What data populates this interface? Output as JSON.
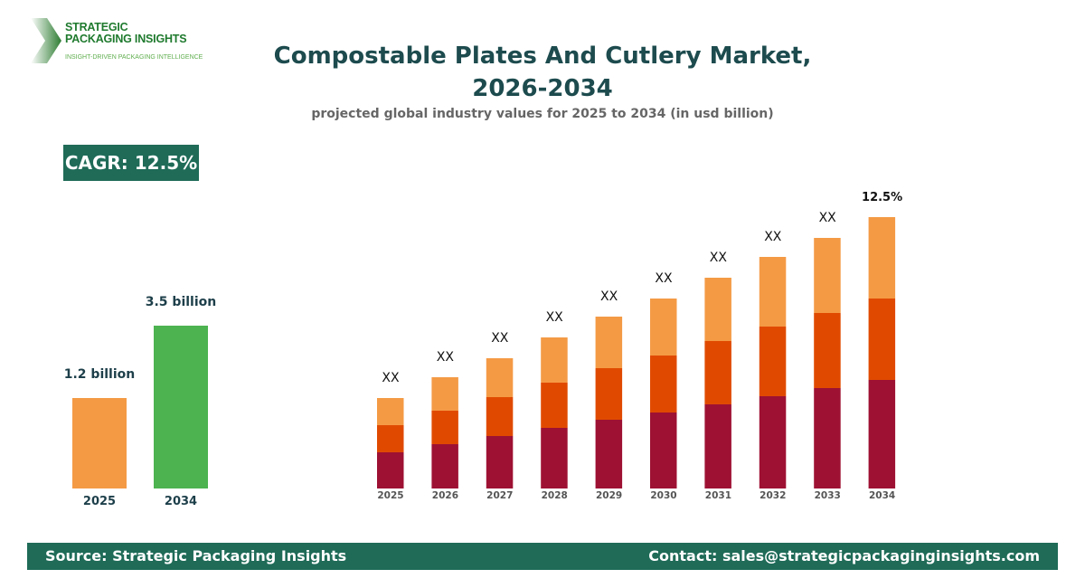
{
  "logo": {
    "line1": "STRATEGIC",
    "line2": "PACKAGING INSIGHTS",
    "tagline": "INSIGHT-DRIVEN PACKAGING INTELLIGENCE"
  },
  "title_line1": "Compostable Plates And Cutlery Market,",
  "title_line2": "2026-2034",
  "subtitle": "projected global industry values for 2025 to 2034 (in usd billion)",
  "cagr": "CAGR: 12.5%",
  "colors": {
    "orange_light": "#f49a45",
    "orange_dark": "#e04a00",
    "crimson": "#9e1133",
    "green": "#4cb350",
    "teal": "#1f6b58"
  },
  "chart_data": [
    {
      "type": "bar",
      "categories": [
        "2025",
        "2034"
      ],
      "values": [
        1.2,
        3.5
      ],
      "data_labels": [
        "1.2 billion",
        "3.5 billion"
      ],
      "colors": [
        "#f49a45",
        "#4cb350"
      ]
    },
    {
      "type": "bar",
      "stacked": true,
      "categories": [
        "2025",
        "2026",
        "2027",
        "2028",
        "2029",
        "2030",
        "2031",
        "2032",
        "2033",
        "2034"
      ],
      "series": [
        {
          "color": "#9e1133",
          "values": [
            40,
            49,
            58,
            67,
            76,
            84,
            93,
            102,
            111,
            120
          ]
        },
        {
          "color": "#e04a00",
          "values": [
            30,
            37,
            43,
            50,
            57,
            63,
            70,
            77,
            83,
            90
          ]
        },
        {
          "color": "#f49a45",
          "values": [
            30,
            37,
            43,
            50,
            57,
            63,
            70,
            77,
            83,
            90
          ]
        }
      ],
      "data_labels": [
        "XX",
        "XX",
        "XX",
        "XX",
        "XX",
        "XX",
        "XX",
        "XX",
        "XX",
        "12.5%"
      ]
    }
  ],
  "footer": {
    "source": "Source: Strategic Packaging Insights",
    "contact": "Contact: sales@strategicpackaginginsights.com"
  }
}
